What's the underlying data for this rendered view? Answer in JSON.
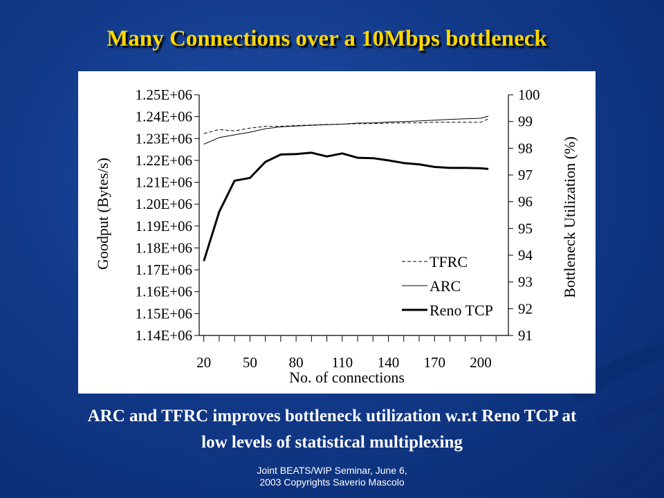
{
  "slide": {
    "title": "Many Connections over a 10Mbps bottleneck",
    "caption_line1": "ARC and TFRC improves bottleneck utilization w.r.t Reno TCP at",
    "caption_line2": "low levels of statistical multiplexing",
    "footer_line1": "Joint BEATS/WIP Seminar, June 6,",
    "footer_line2": "2003 Copyrights Saverio Mascolo",
    "colors": {
      "background": "#123a8a",
      "title": "#ffd700",
      "text": "#ffffff"
    }
  },
  "chart_data": {
    "type": "line",
    "xlabel": "No. of connections",
    "ylabel": "Goodput (Bytes/s)",
    "y2label": "Bottleneck Utilization (%)",
    "x": [
      20,
      30,
      40,
      50,
      60,
      70,
      80,
      90,
      100,
      110,
      120,
      130,
      140,
      150,
      160,
      170,
      180,
      190,
      200,
      205
    ],
    "x_ticks": [
      "20",
      "50",
      "80",
      "110",
      "140",
      "170",
      "200"
    ],
    "xlim": [
      17,
      218
    ],
    "ylim": [
      1140000,
      1250000
    ],
    "y_ticks": [
      "1.14E+06",
      "1.15E+06",
      "1.16E+06",
      "1.17E+06",
      "1.18E+06",
      "1.19E+06",
      "1.20E+06",
      "1.21E+06",
      "1.22E+06",
      "1.23E+06",
      "1.24E+06",
      "1.25E+06"
    ],
    "y2lim": [
      91,
      100
    ],
    "y2_ticks": [
      "91",
      "92",
      "93",
      "94",
      "95",
      "96",
      "97",
      "98",
      "99",
      "100"
    ],
    "grid": false,
    "legend_position": "bottom-right",
    "series": [
      {
        "name": "TFRC",
        "axis": "right",
        "style": "dashed",
        "values": [
          98.55,
          98.7,
          98.65,
          98.75,
          98.82,
          98.82,
          98.85,
          98.87,
          98.89,
          98.9,
          98.92,
          98.92,
          98.94,
          98.95,
          98.95,
          98.97,
          98.97,
          98.97,
          98.97,
          99.1
        ]
      },
      {
        "name": "ARC",
        "axis": "right",
        "style": "thin",
        "values": [
          98.15,
          98.4,
          98.5,
          98.6,
          98.73,
          98.8,
          98.83,
          98.86,
          98.88,
          98.9,
          98.94,
          98.95,
          98.98,
          99.0,
          99.02,
          99.05,
          99.08,
          99.1,
          99.12,
          99.2
        ]
      },
      {
        "name": "Reno TCP",
        "axis": "left",
        "style": "thick",
        "values": [
          1174000,
          1196500,
          1210700,
          1212000,
          1219300,
          1222700,
          1222900,
          1223500,
          1221800,
          1223200,
          1221200,
          1221000,
          1220000,
          1218800,
          1218200,
          1217000,
          1216600,
          1216600,
          1216400,
          1216100
        ]
      }
    ]
  }
}
